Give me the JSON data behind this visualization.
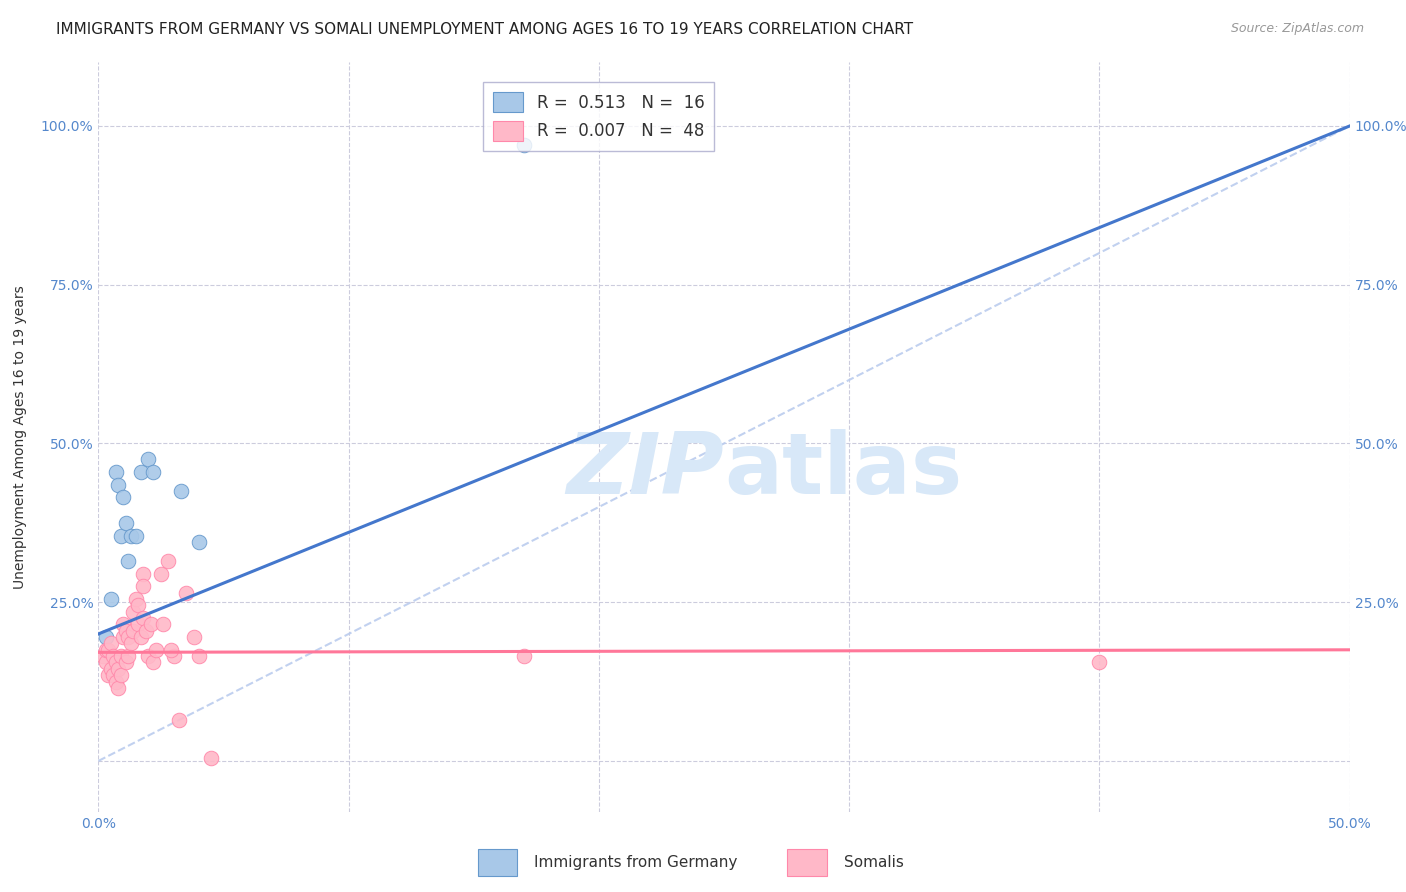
{
  "title": "IMMIGRANTS FROM GERMANY VS SOMALI UNEMPLOYMENT AMONG AGES 16 TO 19 YEARS CORRELATION CHART",
  "source": "Source: ZipAtlas.com",
  "ylabel": "Unemployment Among Ages 16 to 19 years",
  "xlim": [
    0.0,
    0.5
  ],
  "ylim": [
    -0.08,
    1.1
  ],
  "yticks": [
    0.0,
    0.25,
    0.5,
    0.75,
    1.0
  ],
  "xticks": [
    0.0,
    0.1,
    0.2,
    0.3,
    0.4,
    0.5
  ],
  "xticklabels": [
    "0.0%",
    "",
    "",
    "",
    "",
    "50.0%"
  ],
  "yticklabels": [
    "",
    "25.0%",
    "50.0%",
    "75.0%",
    "100.0%"
  ],
  "legend_r1": "R =  0.513",
  "legend_n1": "N =  16",
  "legend_r2": "R =  0.007",
  "legend_n2": "N =  48",
  "color_blue": "#A8C8E8",
  "color_pink": "#FFB8C8",
  "color_blue_edge": "#6699CC",
  "color_pink_edge": "#FF88AA",
  "color_blue_line": "#4477CC",
  "color_pink_line": "#FF7799",
  "color_dashed": "#BBCCEE",
  "watermark_zip": "ZIP",
  "watermark_atlas": "atlas",
  "watermark_color": "#D8E8F8",
  "background_color": "#FFFFFF",
  "grid_color": "#CCCCDD",
  "title_fontsize": 11,
  "axis_label_fontsize": 10,
  "tick_fontsize": 10,
  "legend_fontsize": 12,
  "blue_points_x": [
    0.003,
    0.005,
    0.007,
    0.008,
    0.009,
    0.01,
    0.011,
    0.012,
    0.013,
    0.015,
    0.017,
    0.02,
    0.022,
    0.033,
    0.04,
    0.17
  ],
  "blue_points_y": [
    0.195,
    0.255,
    0.455,
    0.435,
    0.355,
    0.415,
    0.375,
    0.315,
    0.355,
    0.355,
    0.455,
    0.475,
    0.455,
    0.425,
    0.345,
    0.97
  ],
  "pink_points_x": [
    0.002,
    0.003,
    0.003,
    0.004,
    0.004,
    0.005,
    0.005,
    0.006,
    0.006,
    0.007,
    0.007,
    0.008,
    0.008,
    0.009,
    0.009,
    0.01,
    0.01,
    0.011,
    0.011,
    0.012,
    0.012,
    0.013,
    0.014,
    0.014,
    0.015,
    0.016,
    0.016,
    0.017,
    0.018,
    0.018,
    0.019,
    0.02,
    0.021,
    0.022,
    0.023,
    0.025,
    0.026,
    0.028,
    0.03,
    0.032,
    0.035,
    0.038,
    0.04,
    0.045,
    0.17,
    0.4,
    0.018,
    0.029
  ],
  "pink_points_y": [
    0.165,
    0.155,
    0.175,
    0.135,
    0.175,
    0.145,
    0.185,
    0.135,
    0.165,
    0.125,
    0.155,
    0.115,
    0.145,
    0.135,
    0.165,
    0.195,
    0.215,
    0.155,
    0.205,
    0.195,
    0.165,
    0.185,
    0.235,
    0.205,
    0.255,
    0.215,
    0.245,
    0.195,
    0.225,
    0.295,
    0.205,
    0.165,
    0.215,
    0.155,
    0.175,
    0.295,
    0.215,
    0.315,
    0.165,
    0.065,
    0.265,
    0.195,
    0.165,
    0.005,
    0.165,
    0.155,
    0.275,
    0.175
  ],
  "blue_line_x0": 0.0,
  "blue_line_y0": 0.2,
  "blue_line_x1": 0.5,
  "blue_line_y1": 1.0,
  "pink_line_x0": 0.0,
  "pink_line_y0": 0.171,
  "pink_line_x1": 0.5,
  "pink_line_y1": 0.175
}
